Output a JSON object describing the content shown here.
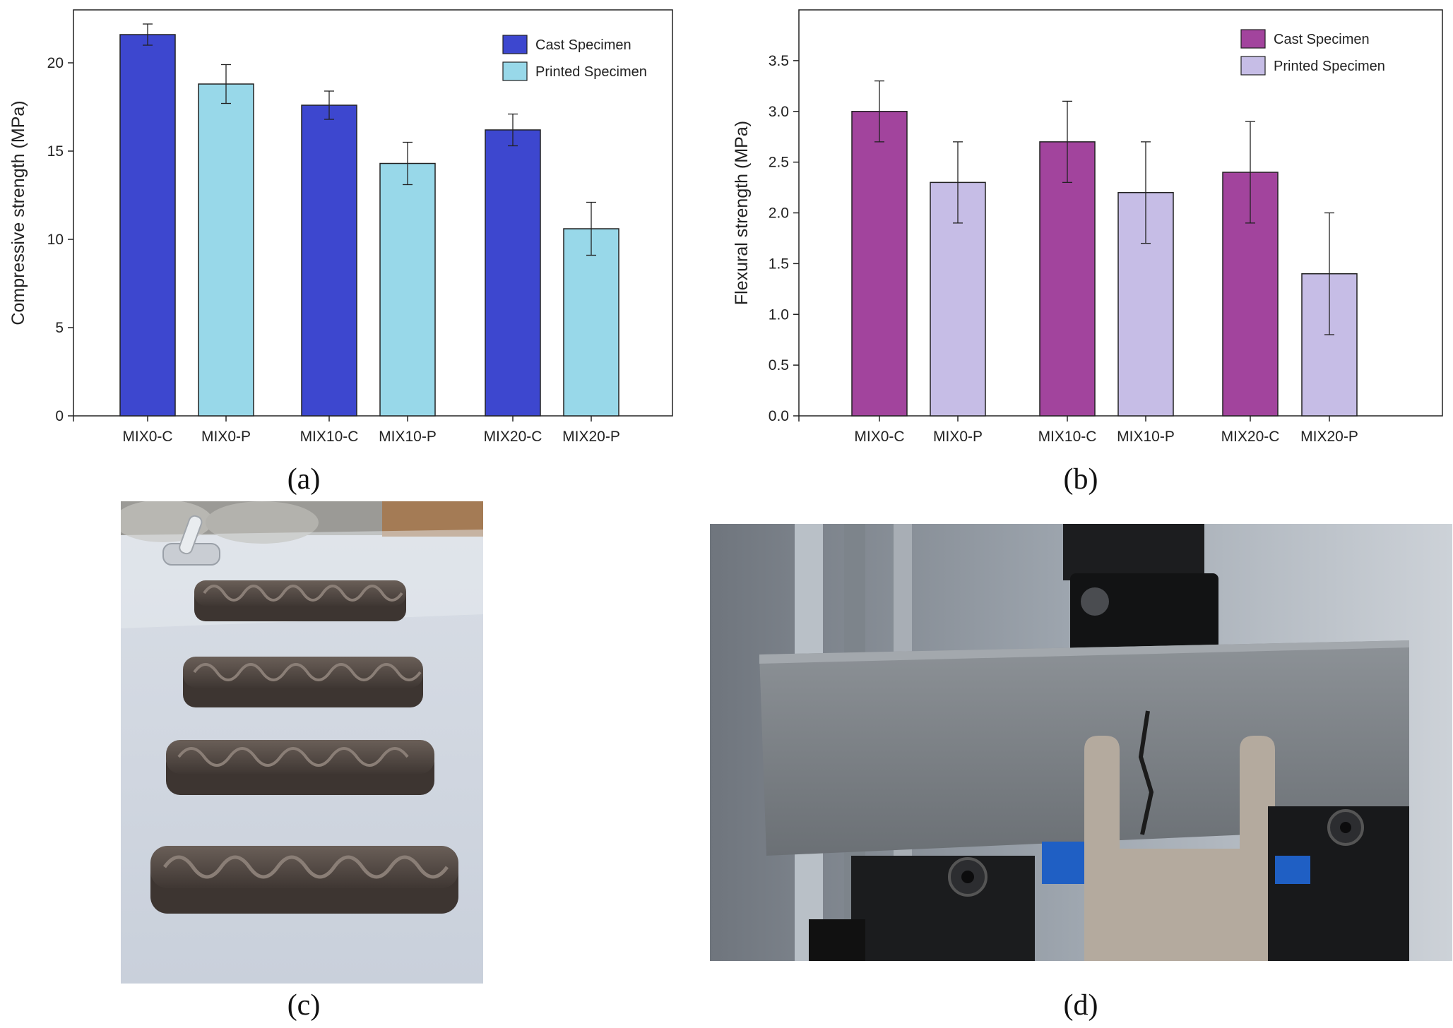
{
  "panels": {
    "a": "(a)",
    "b": "(b)",
    "c": "(c)",
    "d": "(d)"
  },
  "chart_data": [
    {
      "type": "bar",
      "panel": "a",
      "xlabel": "",
      "ylabel": "Compressive strength (MPa)",
      "ylim": [
        0,
        23
      ],
      "yticks": [
        0,
        5,
        10,
        15,
        20
      ],
      "categories": [
        "MIX0-C",
        "MIX0-P",
        "MIX10-C",
        "MIX10-P",
        "MIX20-C",
        "MIX20-P"
      ],
      "values": [
        21.6,
        18.8,
        17.6,
        14.3,
        16.2,
        10.6
      ],
      "errors": [
        0.6,
        1.1,
        0.8,
        1.2,
        0.9,
        1.5
      ],
      "series": [
        {
          "name": "Cast Specimen",
          "color": "#3d47cf",
          "categories": [
            "MIX0-C",
            "MIX10-C",
            "MIX20-C"
          ]
        },
        {
          "name": "Printed Specimen",
          "color": "#98d8e9",
          "categories": [
            "MIX0-P",
            "MIX10-P",
            "MIX20-P"
          ]
        }
      ],
      "legend": "top-right",
      "grid": false
    },
    {
      "type": "bar",
      "panel": "b",
      "xlabel": "",
      "ylabel": "Flexural strength (MPa)",
      "ylim": [
        0,
        4.0
      ],
      "yticks": [
        "0.0",
        "0.5",
        "1.0",
        "1.5",
        "2.0",
        "2.5",
        "3.0",
        "3.5"
      ],
      "categories": [
        "MIX0-C",
        "MIX0-P",
        "MIX10-C",
        "MIX10-P",
        "MIX20-C",
        "MIX20-P"
      ],
      "values": [
        3.0,
        2.3,
        2.7,
        2.2,
        2.4,
        1.4
      ],
      "errors": [
        0.3,
        0.4,
        0.4,
        0.5,
        0.5,
        0.6
      ],
      "series": [
        {
          "name": "Cast Specimen",
          "color": "#a2449d",
          "categories": [
            "MIX0-C",
            "MIX10-C",
            "MIX20-C"
          ]
        },
        {
          "name": "Printed Specimen",
          "color": "#c6bde6",
          "categories": [
            "MIX0-P",
            "MIX10-P",
            "MIX20-P"
          ]
        }
      ],
      "legend": "top-right",
      "grid": false
    }
  ]
}
